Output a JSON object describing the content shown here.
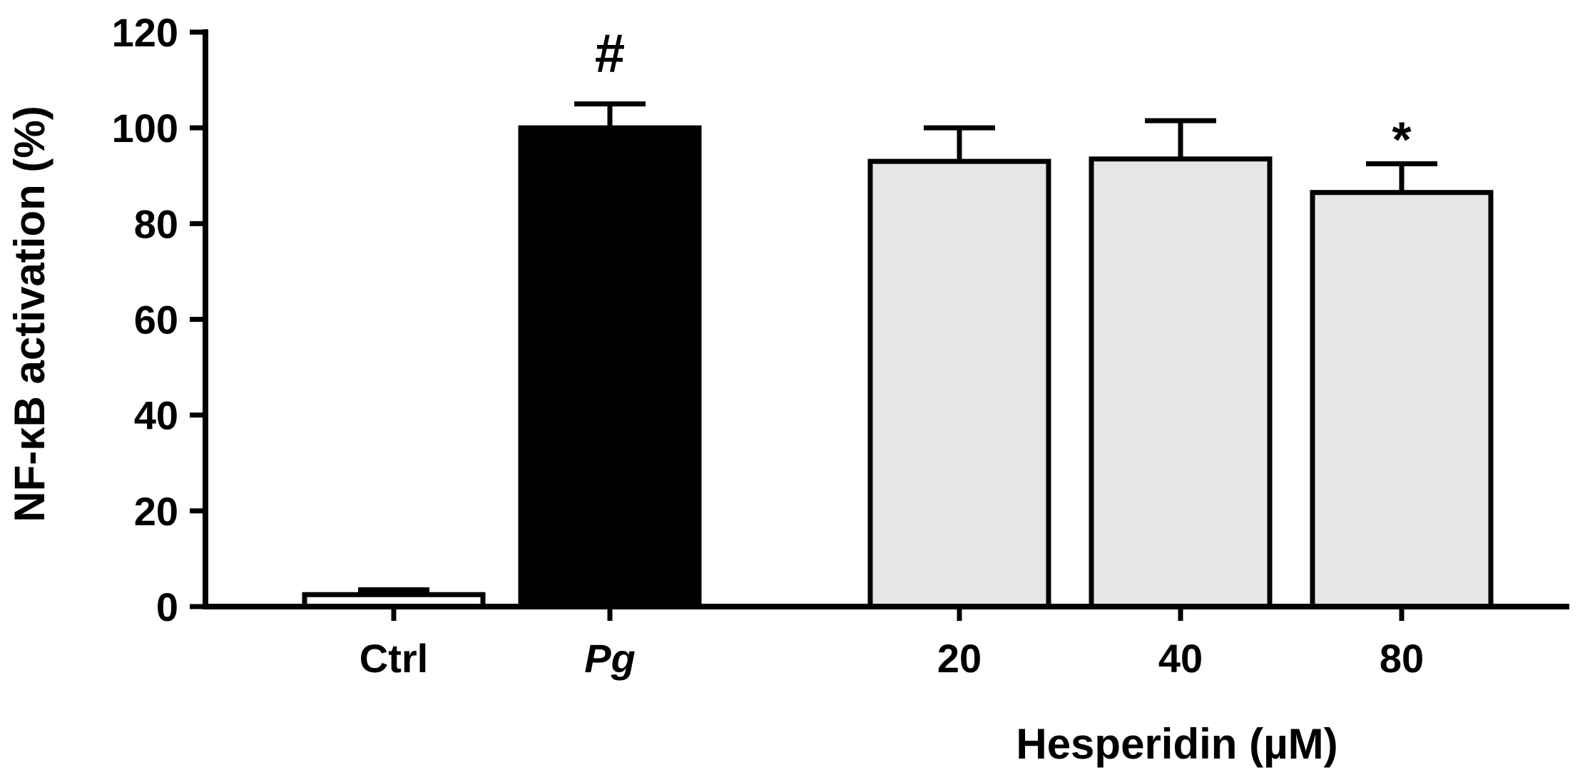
{
  "chart_data": {
    "type": "bar",
    "title": "",
    "ylabel": "NF-κB activation (%)",
    "xlabel": "Hesperidin (µM)",
    "ylim": [
      0,
      120
    ],
    "yticks": [
      0,
      20,
      40,
      60,
      80,
      100,
      120
    ],
    "grid": false,
    "legend": "none",
    "categories": [
      "Ctrl",
      "Pg",
      "20",
      "40",
      "80"
    ],
    "values": [
      2.5,
      100,
      93,
      93.5,
      86.5
    ],
    "errors": [
      1,
      5,
      7,
      8,
      6
    ],
    "fill_colors": [
      "#ffffff",
      "#000000",
      "#e6e6e6",
      "#e6e6e6",
      "#e6e6e6"
    ],
    "annotations": [
      "",
      "#",
      "",
      "",
      "*"
    ]
  }
}
